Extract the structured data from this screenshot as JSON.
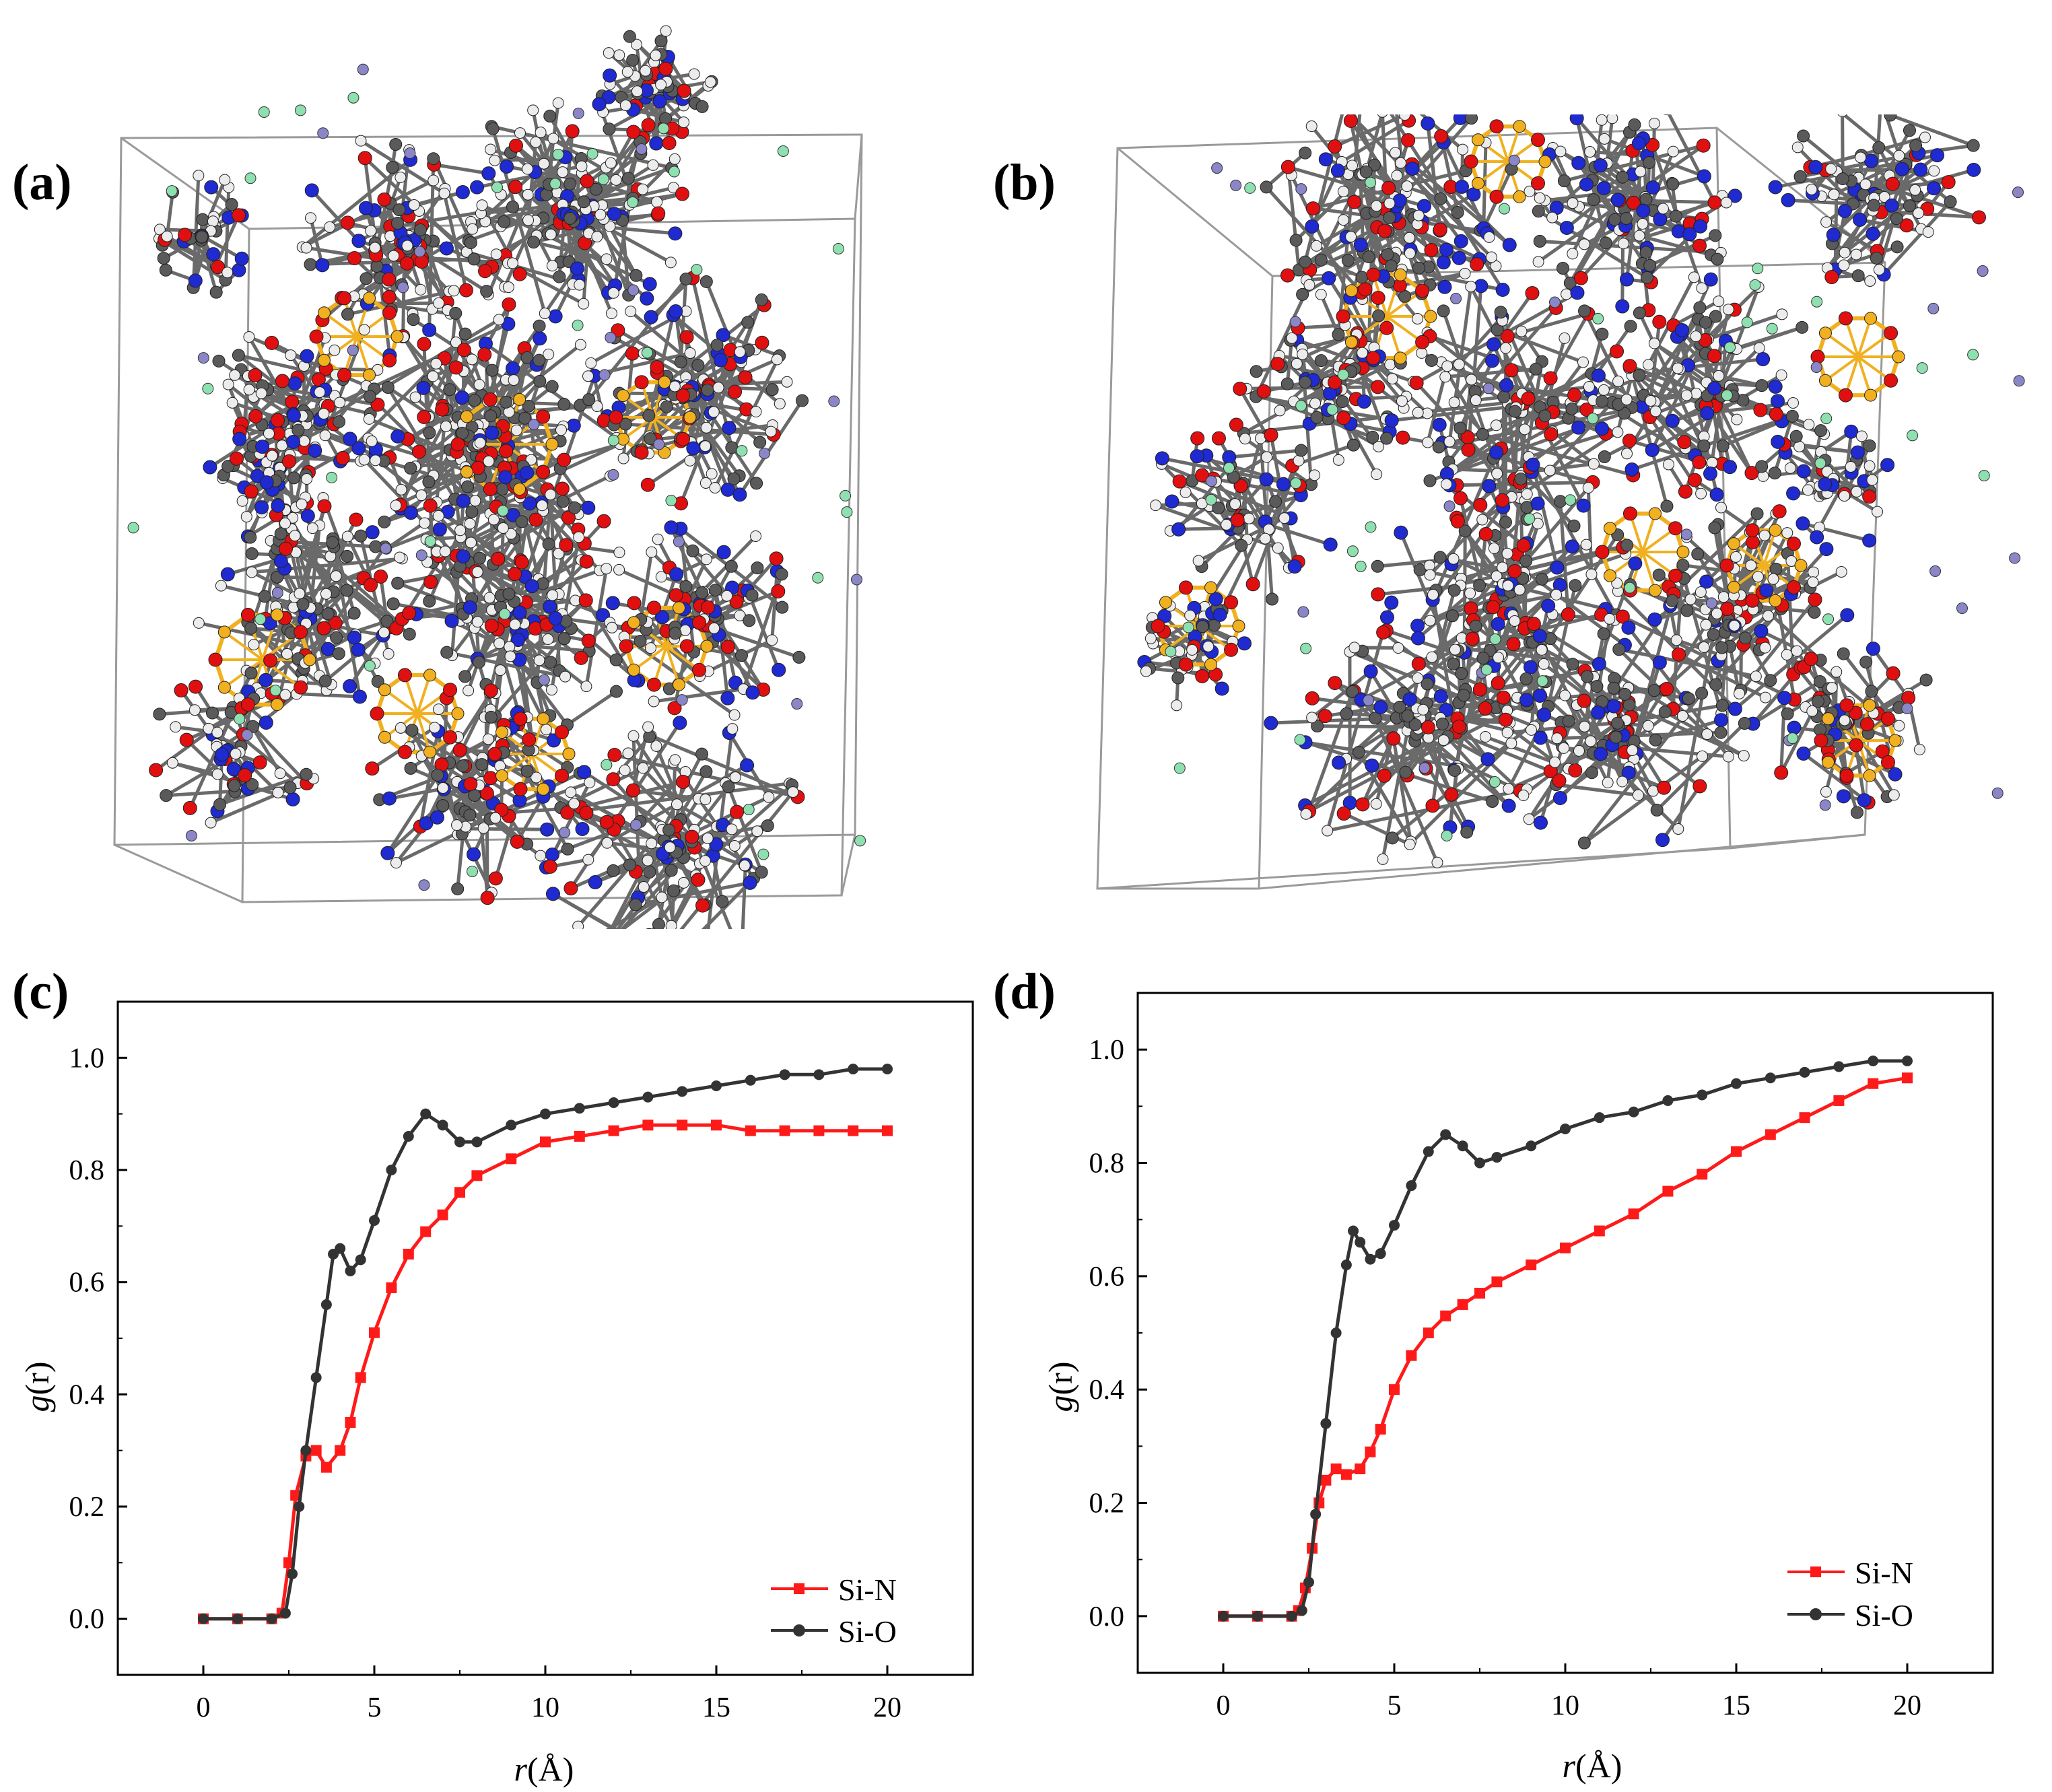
{
  "panels": {
    "a": "(a)",
    "b": "(b)",
    "c": "(c)",
    "d": "(d)"
  },
  "colors": {
    "carbon": "#5a5a5a",
    "hydrogen": "#ececec",
    "oxygen": "#e01010",
    "nitrogen": "#1f2ad0",
    "silicon": "#f0b020",
    "chlorine": "#8fe0b0",
    "sodium": "#8a86c8",
    "box": "#9a9a9a",
    "si_n": "#ff1a1a",
    "si_o": "#333333"
  },
  "chart_data": [
    {
      "type": "line",
      "panel": "(c)",
      "title": "",
      "xlabel_italic": "r",
      "xlabel_rest": "(Å)",
      "ylabel_italic": "g",
      "ylabel_rest": "(r)",
      "xlim": [
        -2.5,
        22.5
      ],
      "ylim": [
        -0.1,
        1.1
      ],
      "xticks": [
        0,
        5,
        10,
        15,
        20
      ],
      "yticks": [
        0.0,
        0.2,
        0.4,
        0.6,
        0.8,
        1.0
      ],
      "xtick_labels": [
        "0",
        "5",
        "10",
        "15",
        "20"
      ],
      "ytick_labels": [
        "0.0",
        "0.2",
        "0.4",
        "0.6",
        "0.8",
        "1.0"
      ],
      "legend_position": "bottom-right",
      "series": [
        {
          "name": "Si-N",
          "color": "#ff1a1a",
          "marker": "square",
          "x": [
            0,
            1,
            2,
            2.3,
            2.5,
            2.7,
            3.0,
            3.3,
            3.6,
            4.0,
            4.3,
            4.6,
            5.0,
            5.5,
            6.0,
            6.5,
            7.0,
            7.5,
            8.0,
            9.0,
            10.0,
            11.0,
            12.0,
            13.0,
            14.0,
            15.0,
            16.0,
            17.0,
            18.0,
            19.0,
            20.0
          ],
          "y": [
            0.0,
            0.0,
            0.0,
            0.01,
            0.1,
            0.22,
            0.29,
            0.3,
            0.27,
            0.3,
            0.35,
            0.43,
            0.51,
            0.59,
            0.65,
            0.69,
            0.72,
            0.76,
            0.79,
            0.82,
            0.85,
            0.86,
            0.87,
            0.88,
            0.88,
            0.88,
            0.87,
            0.87,
            0.87,
            0.87,
            0.87
          ]
        },
        {
          "name": "Si-O",
          "color": "#333333",
          "marker": "circle",
          "x": [
            0,
            1,
            2,
            2.4,
            2.6,
            2.8,
            3.0,
            3.3,
            3.6,
            3.8,
            4.0,
            4.3,
            4.6,
            5.0,
            5.5,
            6.0,
            6.5,
            7.0,
            7.5,
            8.0,
            9.0,
            10.0,
            11.0,
            12.0,
            13.0,
            14.0,
            15.0,
            16.0,
            17.0,
            18.0,
            19.0,
            20.0
          ],
          "y": [
            0.0,
            0.0,
            0.0,
            0.01,
            0.08,
            0.2,
            0.3,
            0.43,
            0.56,
            0.65,
            0.66,
            0.62,
            0.64,
            0.71,
            0.8,
            0.86,
            0.9,
            0.88,
            0.85,
            0.85,
            0.88,
            0.9,
            0.91,
            0.92,
            0.93,
            0.94,
            0.95,
            0.96,
            0.97,
            0.97,
            0.98,
            0.98
          ]
        }
      ]
    },
    {
      "type": "line",
      "panel": "(d)",
      "title": "",
      "xlabel_italic": "r",
      "xlabel_rest": "(Å)",
      "ylabel_italic": "g",
      "ylabel_rest": "(r)",
      "xlim": [
        -2.5,
        22.5
      ],
      "ylim": [
        -0.1,
        1.1
      ],
      "xticks": [
        0,
        5,
        10,
        15,
        20
      ],
      "yticks": [
        0.0,
        0.2,
        0.4,
        0.6,
        0.8,
        1.0
      ],
      "xtick_labels": [
        "0",
        "5",
        "10",
        "15",
        "20"
      ],
      "ytick_labels": [
        "0.0",
        "0.2",
        "0.4",
        "0.6",
        "0.8",
        "1.0"
      ],
      "legend_position": "bottom-right",
      "series": [
        {
          "name": "Si-N",
          "color": "#ff1a1a",
          "marker": "square",
          "x": [
            0,
            1,
            2,
            2.2,
            2.4,
            2.6,
            2.8,
            3.0,
            3.3,
            3.6,
            4.0,
            4.3,
            4.6,
            5.0,
            5.5,
            6.0,
            6.5,
            7.0,
            7.5,
            8.0,
            9.0,
            10.0,
            11.0,
            12.0,
            13.0,
            14.0,
            15.0,
            16.0,
            17.0,
            18.0,
            19.0,
            20.0
          ],
          "y": [
            0.0,
            0.0,
            0.0,
            0.01,
            0.05,
            0.12,
            0.2,
            0.24,
            0.26,
            0.25,
            0.26,
            0.29,
            0.33,
            0.4,
            0.46,
            0.5,
            0.53,
            0.55,
            0.57,
            0.59,
            0.62,
            0.65,
            0.68,
            0.71,
            0.75,
            0.78,
            0.82,
            0.85,
            0.88,
            0.91,
            0.94,
            0.95
          ]
        },
        {
          "name": "Si-O",
          "color": "#333333",
          "marker": "circle",
          "x": [
            0,
            1,
            2,
            2.3,
            2.5,
            2.7,
            3.0,
            3.3,
            3.6,
            3.8,
            4.0,
            4.3,
            4.6,
            5.0,
            5.5,
            6.0,
            6.5,
            7.0,
            7.5,
            8.0,
            9.0,
            10.0,
            11.0,
            12.0,
            13.0,
            14.0,
            15.0,
            16.0,
            17.0,
            18.0,
            19.0,
            20.0
          ],
          "y": [
            0.0,
            0.0,
            0.0,
            0.01,
            0.06,
            0.18,
            0.34,
            0.5,
            0.62,
            0.68,
            0.66,
            0.63,
            0.64,
            0.69,
            0.76,
            0.82,
            0.85,
            0.83,
            0.8,
            0.81,
            0.83,
            0.86,
            0.88,
            0.89,
            0.91,
            0.92,
            0.94,
            0.95,
            0.96,
            0.97,
            0.98,
            0.98
          ]
        }
      ]
    }
  ]
}
